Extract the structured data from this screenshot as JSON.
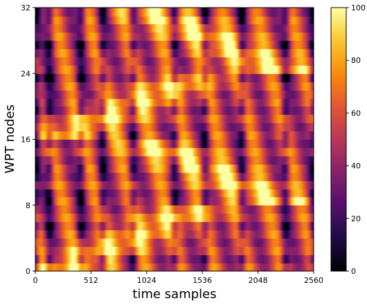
{
  "chart_data": {
    "type": "heatmap",
    "title": "",
    "xlabel": "time samples",
    "ylabel": "WPT nodes",
    "xlim": [
      0,
      2560
    ],
    "ylim": [
      0,
      32
    ],
    "x_ticks": [
      0,
      512,
      1024,
      1536,
      2048,
      2560
    ],
    "y_ticks": [
      0,
      8,
      16,
      24,
      32
    ],
    "n_rows": 32,
    "colormap": "inferno",
    "colorbar": {
      "range": [
        0,
        100
      ],
      "ticks": [
        0,
        20,
        40,
        60,
        80,
        100
      ]
    },
    "grid": false,
    "row_groups": [
      {
        "rows": [
          0,
          7
        ],
        "note": "bright band rising from left-bottom toward middle"
      },
      {
        "rows": [
          8,
          15
        ],
        "note": "bright band near x~1200 at rows 14-15"
      },
      {
        "rows": [
          16,
          23
        ],
        "note": "bright diagonal band, dark strip near x~0-200"
      },
      {
        "rows": [
          24,
          31
        ],
        "note": "bright band toward right at top rows"
      }
    ],
    "dark_columns_x": [
      0,
      128,
      420,
      620,
      900,
      1280,
      1560,
      1900,
      2300,
      2560
    ]
  }
}
